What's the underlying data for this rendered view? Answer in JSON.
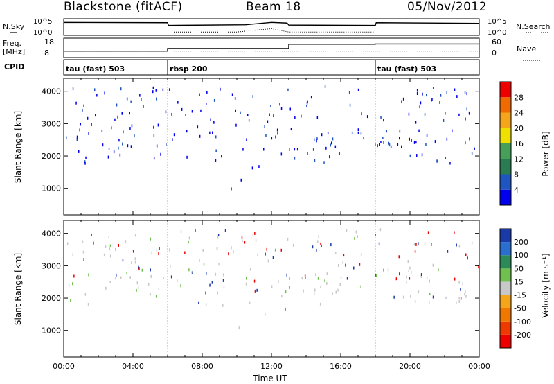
{
  "header": {
    "station": "Blackstone (fitACF)",
    "beam": "Beam 18",
    "date": "05/Nov/2012"
  },
  "colors": {
    "power_scale": [
      "#0000ee",
      "#1f55c0",
      "#2a7a52",
      "#46a05a",
      "#f0e000",
      "#f5a51a",
      "#f06a00",
      "#ee0000"
    ],
    "velocity_scale": [
      "#1a3aa8",
      "#2a6fd0",
      "#2b8a58",
      "#70c050",
      "#c8c8c8",
      "#f5a51a",
      "#f07800",
      "#ee3a00",
      "#ee0000"
    ]
  },
  "chart_data": [
    {
      "type": "line",
      "name": "noise-panel",
      "left_label": "N.Sky",
      "right_label": "N.Search",
      "left_ticks": [
        "10^5",
        "10^0"
      ],
      "right_ticks": [
        "10^5",
        "10^0"
      ],
      "series": [
        {
          "style": "solid",
          "x": [
            0,
            0.02,
            0.05,
            6.0,
            6.05,
            10.5,
            12.0,
            12.9,
            13.0,
            18.0,
            18.05,
            24.0
          ],
          "y": [
            3.5,
            3.8,
            3.9,
            3.8,
            3.0,
            3.2,
            3.9,
            3.7,
            3.1,
            3.0,
            3.8,
            3.6
          ]
        },
        {
          "style": "dotted",
          "x": [
            6.0,
            10.0,
            12.0,
            13.0,
            18.0
          ],
          "y": [
            1.0,
            1.0,
            2.0,
            1.0,
            1.0
          ]
        }
      ]
    },
    {
      "type": "line",
      "name": "freq-nave-panel",
      "left_label_1": "Freq.",
      "left_label_2": "[MHz]",
      "right_label": "Nave",
      "left_ticks": [
        "18",
        "8"
      ],
      "right_ticks": [
        "60",
        "0"
      ],
      "series": [
        {
          "style": "solid",
          "x": [
            0,
            6.0,
            6.0,
            13.0,
            13.0,
            18.0,
            18.0,
            24.0
          ],
          "y": [
            10.0,
            10.0,
            12.0,
            12.0,
            15.3,
            15.3,
            15.5,
            15.5
          ]
        },
        {
          "style": "dotted",
          "x": [
            0,
            13.0,
            13.0,
            24.0
          ],
          "y": [
            20,
            20,
            20,
            20
          ]
        }
      ]
    },
    {
      "type": "table",
      "name": "cpid-panel",
      "label": "CPID",
      "segments": [
        {
          "start": 0.0,
          "end": 6.0,
          "text": "tau (fast) 503"
        },
        {
          "start": 6.0,
          "end": 18.0,
          "text": "rbsp 200"
        },
        {
          "start": 18.0,
          "end": 24.0,
          "text": "tau (fast) 503"
        }
      ]
    },
    {
      "type": "heatmap",
      "name": "power-panel",
      "ylabel": "Slant Range [km]",
      "ylim": [
        180,
        4400
      ],
      "yticks": [
        1000,
        2000,
        3000,
        4000
      ],
      "xlim": [
        0,
        24
      ],
      "colorbar_label": "Power [dB]",
      "colorbar_ticks": [
        4,
        8,
        12,
        16,
        20,
        24,
        28
      ],
      "colorbar_range": [
        0,
        32
      ]
    },
    {
      "type": "heatmap",
      "name": "velocity-panel",
      "ylabel": "Slant Range [km]",
      "xlabel": "Time UT",
      "ylim": [
        180,
        4400
      ],
      "yticks": [
        1000,
        2000,
        3000,
        4000
      ],
      "xlim": [
        0,
        24
      ],
      "xticks": [
        "00:00",
        "04:00",
        "08:00",
        "12:00",
        "16:00",
        "20:00",
        "00:00"
      ],
      "colorbar_label": "Velocity [m s⁻¹]",
      "colorbar_ticks": [
        200,
        100,
        50,
        15,
        -15,
        -50,
        -100,
        -200
      ]
    }
  ]
}
